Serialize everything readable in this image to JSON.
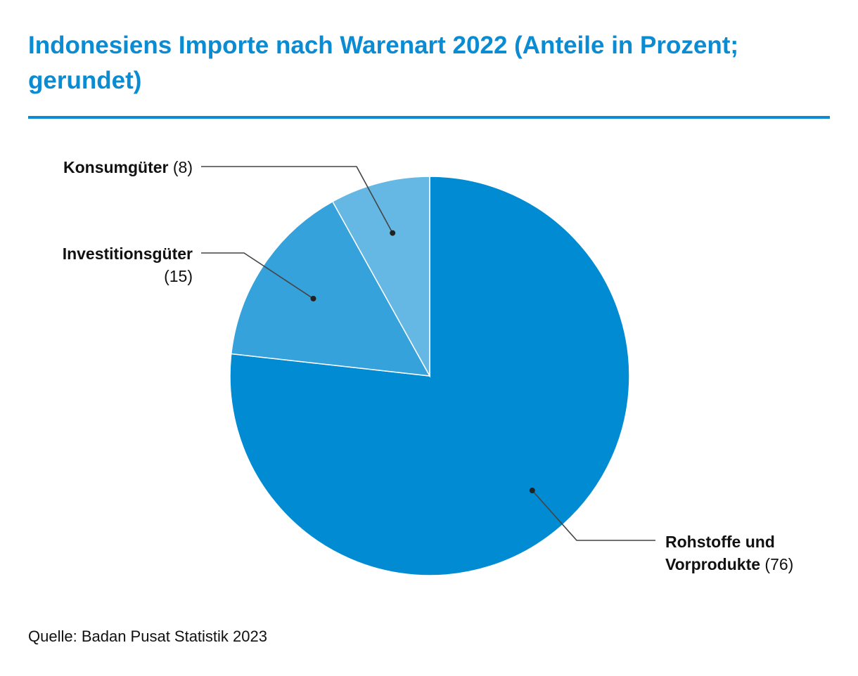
{
  "title": "Indonesiens Importe nach Warenart 2022 (Anteile in Prozent; gerundet)",
  "source": "Quelle: Badan Pusat Statistik 2023",
  "chart_data": {
    "type": "pie",
    "title": "Indonesiens Importe nach Warenart 2022 (Anteile in Prozent; gerundet)",
    "slices": [
      {
        "label": "Rohstoffe und Vorprodukte",
        "label_lines": [
          "Rohstoffe und",
          "Vorprodukte"
        ],
        "value": 76,
        "value_text": "(76)",
        "color": "#008bd2"
      },
      {
        "label": "Investitionsgüter",
        "label_lines": [
          "Investitionsgüter"
        ],
        "value": 15,
        "value_text": "(15)",
        "color": "#35a2db"
      },
      {
        "label": "Konsumgüter",
        "label_lines": [
          "Konsumgüter"
        ],
        "value": 8,
        "value_text": "(8)",
        "color": "#66b8e4"
      }
    ]
  }
}
